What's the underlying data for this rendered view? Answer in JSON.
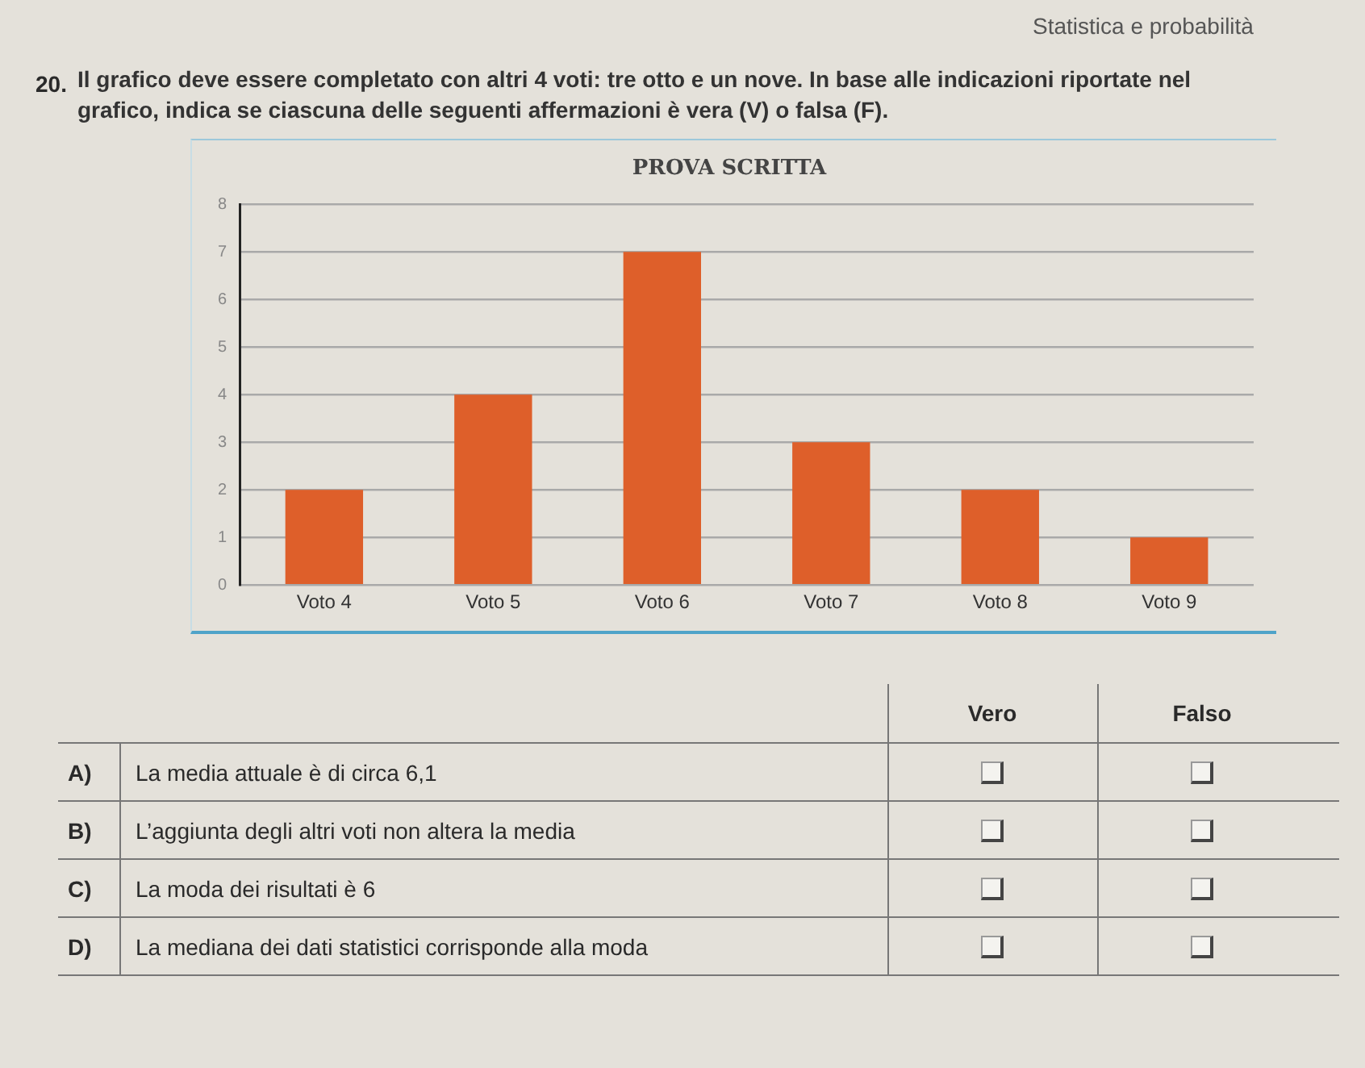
{
  "chart_data": {
    "type": "bar",
    "title": "PROVA SCRITTA",
    "categories": [
      "Voto 4",
      "Voto 5",
      "Voto 6",
      "Voto 7",
      "Voto 8",
      "Voto 9"
    ],
    "values": [
      2,
      4,
      7,
      3,
      2,
      1
    ],
    "color": "#de5f2a",
    "ylim": [
      0,
      8
    ],
    "yticks": [
      0,
      1,
      2,
      3,
      4,
      5,
      6,
      7,
      8
    ],
    "grid": "y",
    "annotations": [
      "Statistica e probabilità",
      "20.",
      "Il grafico deve essere completato con altri 4 voti: tre otto e un nove. In base alle indicazioni riportate nel grafico, indica se ciascuna delle seguenti affermazioni è vera (V) o falsa (F).",
      "Vero",
      "Falso",
      "A)",
      "La media attuale è di circa 6,1",
      "B)",
      "L’aggiunta degli altri voti non altera la media",
      "C)",
      "La moda dei risultati è 6",
      "D)",
      "La mediana dei dati statistici corrisponde alla moda"
    ]
  }
}
